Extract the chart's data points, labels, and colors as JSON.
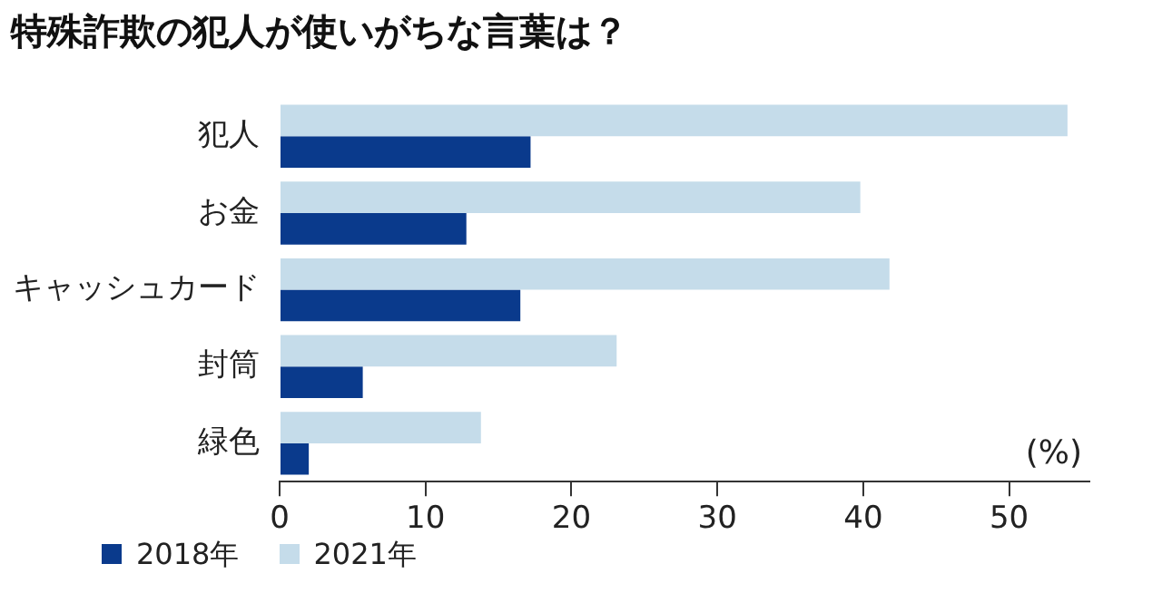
{
  "chart_data": {
    "type": "bar",
    "orientation": "horizontal",
    "title": "特殊詐欺の犯人が使いがちな言葉は？",
    "categories": [
      "犯人",
      "お金",
      "キャッシュカード",
      "封筒",
      "緑色"
    ],
    "series": [
      {
        "name": "2018年",
        "color": "#0a3a8c",
        "values": [
          17.2,
          12.8,
          16.5,
          5.7,
          2.0
        ]
      },
      {
        "name": "2021年",
        "color": "#c5dcea",
        "values": [
          54,
          39.8,
          41.8,
          23.1,
          13.8
        ]
      }
    ],
    "xlim": [
      0,
      55.5
    ],
    "xticks": [
      0,
      10,
      20,
      30,
      40,
      50
    ],
    "grid": false,
    "legend": "bottom left",
    "annotations": [
      "(%)"
    ]
  }
}
